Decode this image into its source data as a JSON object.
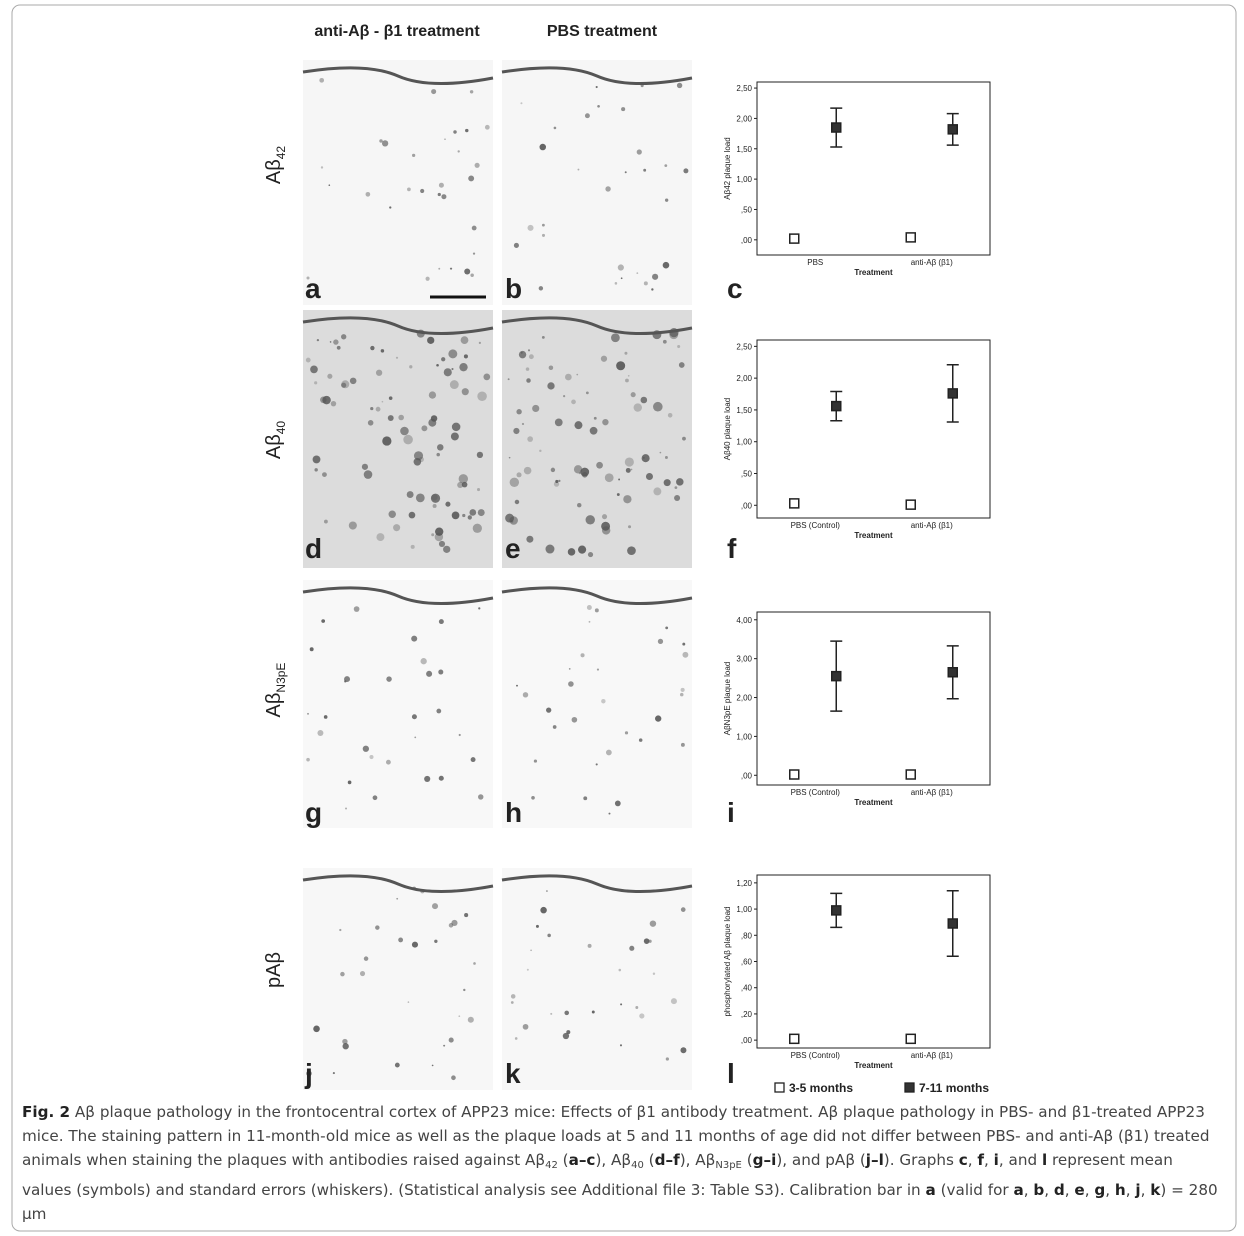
{
  "figure": {
    "column_headers": [
      "anti-Aβ - β1 treatment",
      "PBS treatment"
    ],
    "rows": [
      {
        "label": "Aβ",
        "sub": "42"
      },
      {
        "label": "Aβ",
        "sub": "40"
      },
      {
        "label": "Aβ",
        "sub": "N3pE"
      },
      {
        "label": "pAβ"
      }
    ],
    "panel_letters": [
      "a",
      "b",
      "c",
      "d",
      "e",
      "f",
      "g",
      "h",
      "i",
      "j",
      "k",
      "l"
    ]
  },
  "chart_data": [
    {
      "type": "point",
      "y_label": "Aβ42 plaque load",
      "x_label": "Treatment",
      "categories": [
        "PBS",
        "anti-Aβ (β1)"
      ],
      "ylim": [
        -0.25,
        2.6
      ],
      "yticks": [
        {
          "value": 0,
          "label": ",00"
        },
        {
          "value": 0.5,
          "label": ",50"
        },
        {
          "value": 1,
          "label": "1,00"
        },
        {
          "value": 1.5,
          "label": "1,50"
        },
        {
          "value": 2,
          "label": "2,00"
        },
        {
          "value": 2.5,
          "label": "2,50"
        }
      ],
      "series": [
        {
          "color": "#ffffff",
          "values": [
            0.02,
            0.04
          ]
        },
        {
          "color": "#333333",
          "values": [
            1.85,
            1.82
          ],
          "errors": [
            0.32,
            0.26
          ]
        }
      ]
    },
    {
      "type": "point",
      "y_label": "Aβ40 plaque load",
      "x_label": "Treatment",
      "categories": [
        "PBS (Control)",
        "anti-Aβ (β1)"
      ],
      "ylim": [
        -0.2,
        2.6
      ],
      "yticks": [
        {
          "value": 0,
          "label": ",00"
        },
        {
          "value": 0.5,
          "label": ",50"
        },
        {
          "value": 1,
          "label": "1,00"
        },
        {
          "value": 1.5,
          "label": "1,50"
        },
        {
          "value": 2,
          "label": "2,00"
        },
        {
          "value": 2.5,
          "label": "2,50"
        }
      ],
      "series": [
        {
          "color": "#ffffff",
          "values": [
            0.03,
            0.01
          ]
        },
        {
          "color": "#333333",
          "values": [
            1.56,
            1.76
          ],
          "errors": [
            0.23,
            0.45
          ]
        }
      ]
    },
    {
      "type": "point",
      "y_label": "AβN3pE plaque load",
      "x_label": "Treatment",
      "categories": [
        "PBS (Control)",
        "anti-Aβ (β1)"
      ],
      "ylim": [
        -0.25,
        4.2
      ],
      "yticks": [
        {
          "value": 0,
          "label": ",00"
        },
        {
          "value": 1,
          "label": "1,00"
        },
        {
          "value": 2,
          "label": "2,00"
        },
        {
          "value": 3,
          "label": "3,00"
        },
        {
          "value": 4,
          "label": "4,00"
        }
      ],
      "series": [
        {
          "color": "#ffffff",
          "values": [
            0.02,
            0.02
          ]
        },
        {
          "color": "#333333",
          "values": [
            2.55,
            2.65
          ],
          "errors": [
            0.9,
            0.68
          ]
        }
      ]
    },
    {
      "type": "point",
      "y_label": "phosphorylated Aβ plaque load",
      "x_label": "Treatment",
      "categories": [
        "PBS (Control)",
        "anti-Aβ (β1)"
      ],
      "ylim": [
        -0.06,
        1.26
      ],
      "yticks": [
        {
          "value": 0,
          "label": ",00"
        },
        {
          "value": 0.2,
          "label": ",20"
        },
        {
          "value": 0.4,
          "label": ",40"
        },
        {
          "value": 0.6,
          "label": ",60"
        },
        {
          "value": 0.8,
          "label": ",80"
        },
        {
          "value": 1,
          "label": "1,00"
        },
        {
          "value": 1.2,
          "label": "1,20"
        }
      ],
      "series": [
        {
          "name": "3-5 months",
          "color": "#ffffff",
          "values": [
            0.01,
            0.01
          ]
        },
        {
          "name": "7-11 months",
          "color": "#333333",
          "values": [
            0.99,
            0.89
          ],
          "errors": [
            0.13,
            0.25
          ]
        }
      ]
    }
  ],
  "caption": {
    "runs": [
      {
        "text": "Fig. 2",
        "style": "bold"
      },
      {
        "text": " Aβ plaque pathology in the frontocentral cortex of APP23 mice: Effects of β1 antibody treatment. Aβ plaque pathology in PBS- and β1-treated APP23 mice. The staining pattern in 11-month-old mice as well as the plaque loads at 5 and 11 months of age did not differ between PBS- and anti-Aβ (β1) treated animals when staining the plaques with antibodies raised against Aβ"
      },
      {
        "text": "42",
        "style": "sub"
      },
      {
        "text": " ("
      },
      {
        "text": "a–c",
        "style": "bold"
      },
      {
        "text": "), Aβ"
      },
      {
        "text": "40",
        "style": "sub"
      },
      {
        "text": " ("
      },
      {
        "text": "d–f",
        "style": "bold"
      },
      {
        "text": "), Aβ"
      },
      {
        "text": "N3pE",
        "style": "sub"
      },
      {
        "text": " ("
      },
      {
        "text": "g–i",
        "style": "bold"
      },
      {
        "text": "), and pAβ ("
      },
      {
        "text": "j–l",
        "style": "bold"
      },
      {
        "text": "). Graphs "
      },
      {
        "text": "c",
        "style": "bold"
      },
      {
        "text": ", "
      },
      {
        "text": "f",
        "style": "bold"
      },
      {
        "text": ", "
      },
      {
        "text": "i",
        "style": "bold"
      },
      {
        "text": ", and "
      },
      {
        "text": "l",
        "style": "bold"
      },
      {
        "text": " represent mean values (symbols) and standard errors (whiskers). (Statistical analysis see Additional file 3: Table S3). Calibration bar in "
      },
      {
        "text": "a",
        "style": "bold"
      },
      {
        "text": " (valid for "
      },
      {
        "text": "a",
        "style": "bold"
      },
      {
        "text": ", "
      },
      {
        "text": "b",
        "style": "bold"
      },
      {
        "text": ", "
      },
      {
        "text": "d",
        "style": "bold"
      },
      {
        "text": ", "
      },
      {
        "text": "e",
        "style": "bold"
      },
      {
        "text": ", "
      },
      {
        "text": "g",
        "style": "bold"
      },
      {
        "text": ", "
      },
      {
        "text": "h",
        "style": "bold"
      },
      {
        "text": ", "
      },
      {
        "text": "j",
        "style": "bold"
      },
      {
        "text": ", "
      },
      {
        "text": "k",
        "style": "bold"
      },
      {
        "text": ") = 280 μm"
      }
    ]
  }
}
